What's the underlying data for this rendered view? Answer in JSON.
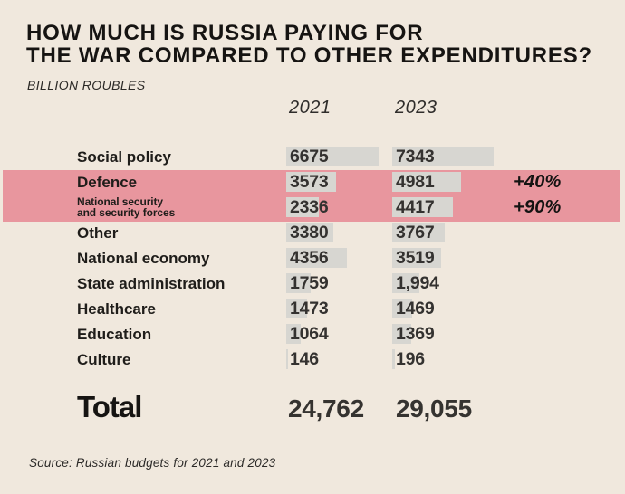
{
  "title": {
    "line1": "HOW MUCH IS RUSSIA PAYING FOR",
    "line2": "THE WAR COMPARED TO OTHER EXPENDITURES?"
  },
  "subtitle": "BILLION ROUBLES",
  "columns": {
    "col1": "2021",
    "col2": "2023"
  },
  "rows": [
    {
      "label": "Social policy",
      "label2": "",
      "v2021": "6675",
      "n2021": 6675,
      "v2023": "7343",
      "n2023": 7343,
      "pct": "",
      "highlight": false
    },
    {
      "label": "Defence",
      "label2": "",
      "v2021": "3573",
      "n2021": 3573,
      "v2023": "4981",
      "n2023": 4981,
      "pct": "+40%",
      "highlight": true
    },
    {
      "label": "National security",
      "label2": "and security forces",
      "v2021": "2336",
      "n2021": 2336,
      "v2023": "4417",
      "n2023": 4417,
      "pct": "+90%",
      "highlight": true
    },
    {
      "label": "Other",
      "label2": "",
      "v2021": "3380",
      "n2021": 3380,
      "v2023": "3767",
      "n2023": 3767,
      "pct": "",
      "highlight": false
    },
    {
      "label": "National economy",
      "label2": "",
      "v2021": "4356",
      "n2021": 4356,
      "v2023": "3519",
      "n2023": 3519,
      "pct": "",
      "highlight": false
    },
    {
      "label": "State administration",
      "label2": "",
      "v2021": "1759",
      "n2021": 1759,
      "v2023": "1,994",
      "n2023": 1994,
      "pct": "",
      "highlight": false
    },
    {
      "label": "Healthcare",
      "label2": "",
      "v2021": "1473",
      "n2021": 1473,
      "v2023": "1469",
      "n2023": 1469,
      "pct": "",
      "highlight": false
    },
    {
      "label": "Education",
      "label2": "",
      "v2021": "1064",
      "n2021": 1064,
      "v2023": "1369",
      "n2023": 1369,
      "pct": "",
      "highlight": false
    },
    {
      "label": "Culture",
      "label2": "",
      "v2021": "146",
      "n2021": 146,
      "v2023": "196",
      "n2023": 196,
      "pct": "",
      "highlight": false
    }
  ],
  "total": {
    "label": "Total",
    "y2021": "24,762",
    "y2023": "29,055"
  },
  "source": "Source: Russian budgets for 2021 and 2023",
  "colors": {
    "background": "#f0e8dd",
    "highlight": "#e8969e",
    "bar": "#d7d6d1",
    "text": "#1a1a1a"
  },
  "chart_data": {
    "type": "bar",
    "orientation": "horizontal",
    "title": "HOW MUCH IS RUSSIA PAYING FOR THE WAR COMPARED TO OTHER EXPENDITURES?",
    "unit_label": "BILLION ROUBLES",
    "categories": [
      "Social policy",
      "Defence",
      "National security and security forces",
      "Other",
      "National economy",
      "State administration",
      "Healthcare",
      "Education",
      "Culture"
    ],
    "series": [
      {
        "name": "2021",
        "values": [
          6675,
          3573,
          2336,
          3380,
          4356,
          1759,
          1473,
          1064,
          146
        ]
      },
      {
        "name": "2023",
        "values": [
          7343,
          4981,
          4417,
          3767,
          3519,
          1994,
          1469,
          1369,
          196
        ]
      }
    ],
    "annotations": [
      {
        "category": "Defence",
        "text": "+40%"
      },
      {
        "category": "National security and security forces",
        "text": "+90%"
      }
    ],
    "highlighted_categories": [
      "Defence",
      "National security and security forces"
    ],
    "totals": {
      "2021": 24762,
      "2023": 29055
    },
    "grid": false,
    "legend_position": "column-headers",
    "source": "Source: Russian budgets for 2021 and 2023"
  }
}
